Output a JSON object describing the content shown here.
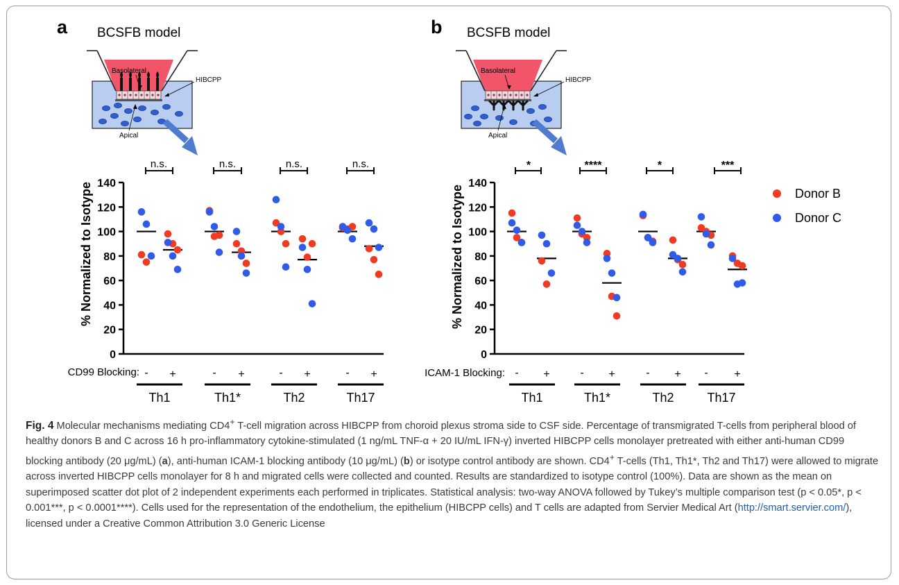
{
  "panels": [
    {
      "letter": "a",
      "model_title": "BCSFB model",
      "labels": {
        "top": "Basolateral",
        "cells": "HIBCPP",
        "bottom": "Apical"
      },
      "blocking_label": "CD99 Blocking:",
      "significance": [
        "n.s.",
        "n.s.",
        "n.s.",
        "n.s."
      ]
    },
    {
      "letter": "b",
      "model_title": "BCSFB model",
      "labels": {
        "top": "Basolateral",
        "cells": "HIBCPP",
        "bottom": "Apical"
      },
      "blocking_label": "ICAM-1 Blocking:",
      "significance": [
        "*",
        "****",
        "*",
        "***"
      ]
    }
  ],
  "legend": [
    {
      "name": "Donor B",
      "color": "#f03a21"
    },
    {
      "name": "Donor C",
      "color": "#2f5be8"
    }
  ],
  "colors": {
    "donor_b": "#f03a21",
    "donor_c": "#2f5be8",
    "insert_red": "#f2556a",
    "medium_blue": "#b9cdf0",
    "arrow_blue": "#4f7ccf"
  },
  "chart_data": [
    {
      "type": "scatter",
      "panel": "a",
      "ylabel": "% Normalized to Isotype",
      "ylim": [
        0,
        140
      ],
      "yticks": [
        0,
        20,
        40,
        60,
        80,
        100,
        120,
        140
      ],
      "groups": [
        "Th1",
        "Th1*",
        "Th2",
        "Th17"
      ],
      "conditions": [
        "-",
        "+"
      ],
      "means": [
        100,
        85,
        100,
        83,
        100,
        77,
        100,
        88
      ],
      "series": [
        {
          "name": "Donor B",
          "color": "#f03a21",
          "points": [
            [
              0,
              81
            ],
            [
              0,
              75
            ],
            [
              1,
              98
            ],
            [
              1,
              90
            ],
            [
              1,
              85
            ],
            [
              2,
              117
            ],
            [
              2,
              96
            ],
            [
              2,
              97
            ],
            [
              3,
              90
            ],
            [
              3,
              84
            ],
            [
              3,
              74
            ],
            [
              4,
              107
            ],
            [
              4,
              100
            ],
            [
              4,
              90
            ],
            [
              5,
              94
            ],
            [
              5,
              79
            ],
            [
              5,
              90
            ],
            [
              6,
              103
            ],
            [
              6,
              102
            ],
            [
              6,
              104
            ],
            [
              7,
              86
            ],
            [
              7,
              77
            ],
            [
              7,
              65
            ]
          ]
        },
        {
          "name": "Donor C",
          "color": "#2f5be8",
          "points": [
            [
              0,
              116
            ],
            [
              0,
              106
            ],
            [
              0,
              80
            ],
            [
              1,
              91
            ],
            [
              1,
              80
            ],
            [
              1,
              69
            ],
            [
              2,
              116
            ],
            [
              2,
              104
            ],
            [
              2,
              83
            ],
            [
              3,
              100
            ],
            [
              3,
              80
            ],
            [
              3,
              66
            ],
            [
              4,
              126
            ],
            [
              4,
              104
            ],
            [
              4,
              71
            ],
            [
              5,
              87
            ],
            [
              5,
              69
            ],
            [
              5,
              41
            ],
            [
              6,
              104
            ],
            [
              6,
              101
            ],
            [
              6,
              94
            ],
            [
              7,
              107
            ],
            [
              7,
              102
            ],
            [
              7,
              87
            ]
          ]
        }
      ]
    },
    {
      "type": "scatter",
      "panel": "b",
      "ylabel": "% Normalized to Isotype",
      "ylim": [
        0,
        140
      ],
      "yticks": [
        0,
        20,
        40,
        60,
        80,
        100,
        120,
        140
      ],
      "groups": [
        "Th1",
        "Th1*",
        "Th2",
        "Th17"
      ],
      "conditions": [
        "-",
        "+"
      ],
      "means": [
        100,
        78,
        100,
        58,
        100,
        78,
        100,
        69
      ],
      "series": [
        {
          "name": "Donor B",
          "color": "#f03a21",
          "points": [
            [
              0,
              115
            ],
            [
              0,
              95
            ],
            [
              0,
              91
            ],
            [
              1,
              76
            ],
            [
              1,
              57
            ],
            [
              2,
              111
            ],
            [
              2,
              98
            ],
            [
              2,
              95
            ],
            [
              3,
              82
            ],
            [
              3,
              47
            ],
            [
              3,
              31
            ],
            [
              4,
              113
            ],
            [
              4,
              95
            ],
            [
              4,
              92
            ],
            [
              5,
              93
            ],
            [
              5,
              77
            ],
            [
              5,
              73
            ],
            [
              6,
              103
            ],
            [
              6,
              100
            ],
            [
              6,
              97
            ],
            [
              7,
              80
            ],
            [
              7,
              74
            ],
            [
              7,
              72
            ]
          ]
        },
        {
          "name": "Donor C",
          "color": "#2f5be8",
          "points": [
            [
              0,
              107
            ],
            [
              0,
              101
            ],
            [
              0,
              91
            ],
            [
              1,
              97
            ],
            [
              1,
              90
            ],
            [
              1,
              66
            ],
            [
              2,
              105
            ],
            [
              2,
              100
            ],
            [
              2,
              91
            ],
            [
              3,
              78
            ],
            [
              3,
              66
            ],
            [
              3,
              46
            ],
            [
              4,
              114
            ],
            [
              4,
              95
            ],
            [
              4,
              91
            ],
            [
              5,
              81
            ],
            [
              5,
              78
            ],
            [
              5,
              67
            ],
            [
              6,
              112
            ],
            [
              6,
              98
            ],
            [
              6,
              89
            ],
            [
              7,
              78
            ],
            [
              7,
              57
            ],
            [
              7,
              58
            ]
          ]
        }
      ]
    }
  ],
  "caption": {
    "fig_label": "Fig. 4",
    "text_1": " Molecular mechanisms mediating CD4",
    "sup_1": "+",
    "text_2": " T-cell migration across HIBCPP from choroid plexus stroma side to CSF side. Percentage of transmigrated T-cells from peripheral blood of healthy donors B and C across 16 h pro-inflammatory cytokine-stimulated (1 ng/mL TNF-α + 20 IU/mL IFN-γ) inverted HIBCPP cells monolayer pretreated with either anti-human CD99 blocking antibody (20 μg/mL) (",
    "bold_a": "a",
    "text_3": "), anti-human ICAM-1 blocking antibody (10 μg/mL) (",
    "bold_b": "b",
    "text_4": ") or isotype control antibody are shown. CD4",
    "sup_2": "+",
    "text_5": " T-cells (Th1, Th1*, Th2 and Th17) were allowed to migrate across inverted HIBCPP cells monolayer for 8 h and migrated cells were collected and counted. Results are standardized to isotype control (100%). Data are shown as the mean on superimposed scatter dot plot of 2 independent experiments each performed in triplicates. Statistical analysis: two-way ANOVA followed by Tukey’s multiple comparison test (p < 0.05*, p < 0.001***, p < 0.0001****). Cells used for the representation of the endothelium, the epithelium (HIBCPP cells) and T cells are adapted from Servier Medical Art (",
    "link": "http://smart.servier.com/",
    "text_6": "), licensed under a Creative Common Attribution 3.0 Generic License"
  }
}
